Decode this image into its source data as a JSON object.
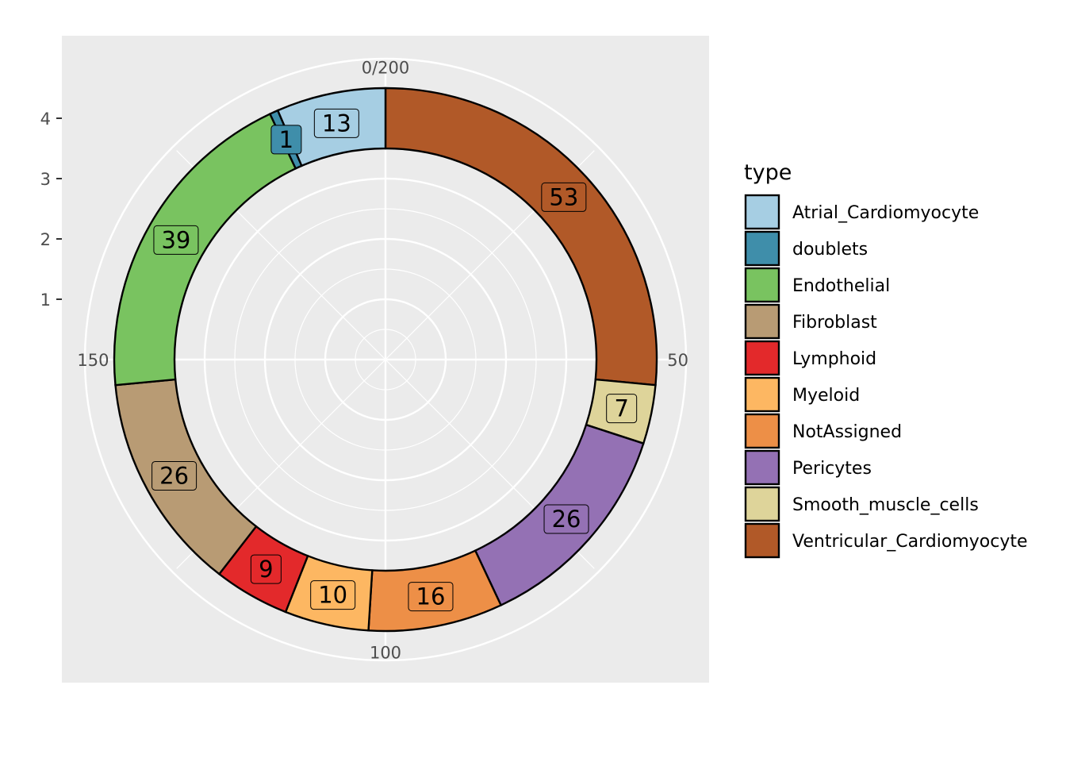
{
  "chart_data": {
    "type": "pie",
    "style": "donut (polar bar chart)",
    "total": 200,
    "slices": [
      {
        "category": "Ventricular_Cardiomyocyte",
        "value": 53,
        "color": "#B15928"
      },
      {
        "category": "Smooth_muscle_cells",
        "value": 7,
        "color": "#DED49A"
      },
      {
        "category": "Pericytes",
        "value": 26,
        "color": "#9471B4"
      },
      {
        "category": "NotAssigned",
        "value": 16,
        "color": "#ED8F47"
      },
      {
        "category": "Myeloid",
        "value": 10,
        "color": "#FDB762"
      },
      {
        "category": "Lymphoid",
        "value": 9,
        "color": "#E3292B"
      },
      {
        "category": "Fibroblast",
        "value": 26,
        "color": "#B89B74"
      },
      {
        "category": "Endothelial",
        "value": 39,
        "color": "#79C360"
      },
      {
        "category": "doublets",
        "value": 1,
        "color": "#3F8EAA"
      },
      {
        "category": "Atrial_Cardiomyocyte",
        "value": 13,
        "color": "#A6CEE3"
      }
    ],
    "theta_axis": {
      "ticks": [
        "0/200",
        "50",
        "100",
        "150"
      ],
      "range": [
        0,
        200
      ]
    },
    "radial_axis": {
      "ticks": [
        "1",
        "2",
        "3",
        "4"
      ],
      "range": [
        0,
        4
      ],
      "ring_inner": 3.5,
      "ring_outer": 4.5
    },
    "legend": {
      "title": "type",
      "placement": "right",
      "entries": [
        "Atrial_Cardiomyocyte",
        "doublets",
        "Endothelial",
        "Fibroblast",
        "Lymphoid",
        "Myeloid",
        "NotAssigned",
        "Pericytes",
        "Smooth_muscle_cells",
        "Ventricular_Cardiomyocyte"
      ]
    },
    "grid": true,
    "panel_background": "#EBEBEB"
  }
}
